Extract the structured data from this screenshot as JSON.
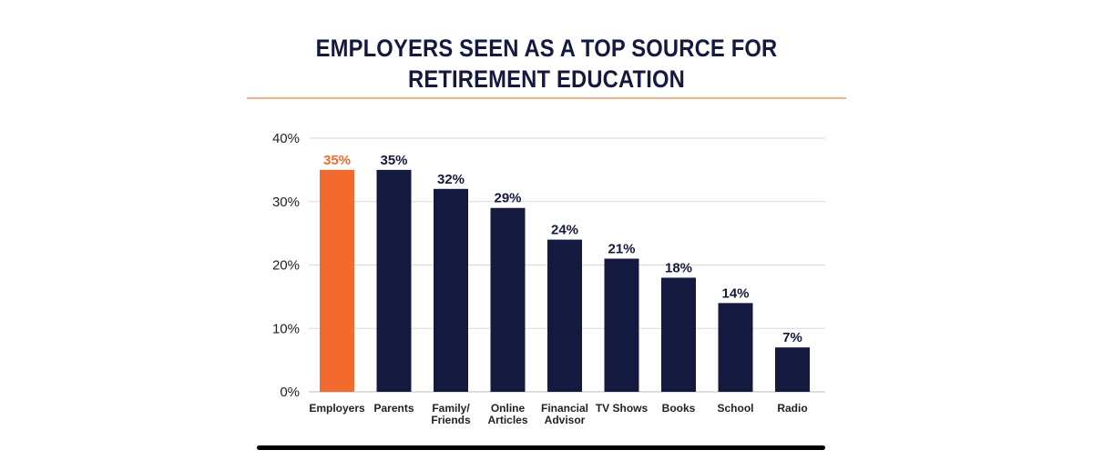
{
  "title_lines": [
    "EMPLOYERS SEEN AS A TOP SOURCE FOR",
    "RETIREMENT EDUCATION"
  ],
  "colors": {
    "highlight": "#f26a2e",
    "bar": "#14193f",
    "title": "#14193f",
    "grid": "#d9d9d9",
    "rule": "#e9b48f"
  },
  "chart_data": {
    "type": "bar",
    "title": "EMPLOYERS SEEN AS A TOP SOURCE FOR RETIREMENT EDUCATION",
    "xlabel": "",
    "ylabel": "",
    "ylim": [
      0,
      40
    ],
    "y_ticks": [
      0,
      10,
      20,
      30,
      40
    ],
    "y_tick_labels": [
      "0%",
      "10%",
      "20%",
      "30%",
      "40%"
    ],
    "grid": true,
    "highlight_index": 0,
    "categories": [
      [
        "Employers"
      ],
      [
        "Parents"
      ],
      [
        "Family/",
        "Friends"
      ],
      [
        "Online",
        "Articles"
      ],
      [
        "Financial",
        "Advisor"
      ],
      [
        "TV Shows"
      ],
      [
        "Books"
      ],
      [
        "School"
      ],
      [
        "Radio"
      ]
    ],
    "values": [
      35,
      35,
      32,
      29,
      24,
      21,
      18,
      14,
      7
    ],
    "value_labels": [
      "35%",
      "35%",
      "32%",
      "29%",
      "24%",
      "21%",
      "18%",
      "14%",
      "7%"
    ]
  }
}
